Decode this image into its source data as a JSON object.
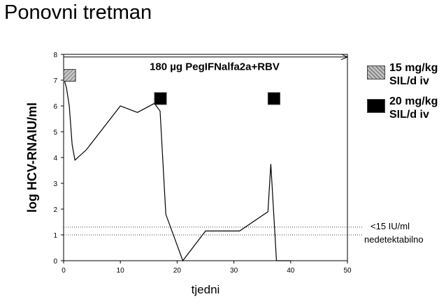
{
  "slide": {
    "title": "Ponovni tretman"
  },
  "legend": [
    {
      "label": "15 mg/kg SIL/d iv",
      "style": "hatched",
      "color": "#999999"
    },
    {
      "label": "20 mg/kg SIL/d iv",
      "style": "solid",
      "color": "#000000"
    }
  ],
  "reference_lines": [
    {
      "label": "<15 IU/ml",
      "y": 1.3
    },
    {
      "label": "nedetektabilno",
      "y": 1.0
    }
  ],
  "chart_data": {
    "type": "line",
    "title": "",
    "xlabel": "tjedni",
    "ylabel": "log HCV-RNAIU/ml",
    "xlim": [
      0,
      50
    ],
    "ylim": [
      0,
      8
    ],
    "xticks": [
      0,
      10,
      20,
      30,
      40,
      50
    ],
    "yticks": [
      0,
      1,
      2,
      3,
      4,
      5,
      6,
      7,
      8
    ],
    "grid": false,
    "legend_placement": "right",
    "line_color": "#000000",
    "series": [
      {
        "x": [
          0,
          0.5,
          1,
          1.5,
          2,
          4,
          10,
          13,
          16,
          17,
          18,
          21,
          25,
          31,
          36,
          36.5,
          37.5,
          39,
          40
        ],
        "values": [
          7.1,
          6.7,
          6.0,
          4.5,
          3.9,
          4.3,
          6.0,
          5.75,
          6.1,
          5.8,
          1.8,
          0.0,
          1.15,
          1.15,
          1.9,
          3.75,
          0.0,
          0.0,
          0.0
        ]
      }
    ],
    "annotations": [
      {
        "text": "180 µg PegIFNalfa2a+RBV",
        "x_start": 0,
        "x_end": 50,
        "y": 7.9
      }
    ],
    "treatment_markers": [
      {
        "x": 1,
        "y": 7.2,
        "style": "hatched",
        "dose": "15 mg/kg"
      },
      {
        "x": 17,
        "y": 6.3,
        "style": "solid",
        "dose": "20 mg/kg"
      },
      {
        "x": 37,
        "y": 6.3,
        "style": "solid",
        "dose": "20 mg/kg"
      }
    ]
  }
}
